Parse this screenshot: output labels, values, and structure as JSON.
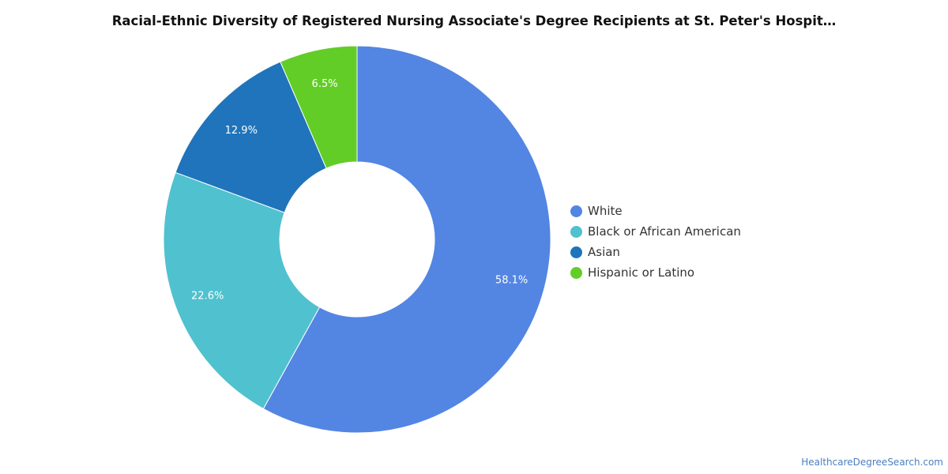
{
  "chart_data": {
    "type": "pie",
    "title": "Racial-Ethnic Diversity of Registered Nursing Associate's Degree Recipients at St. Peter's Hospit…",
    "categories": [
      "White",
      "Black or African American",
      "Asian",
      "Hispanic or Latino"
    ],
    "values": [
      58.1,
      22.6,
      12.9,
      6.5
    ],
    "value_labels": [
      "58.1%",
      "22.6%",
      "12.9%",
      "6.5%"
    ],
    "colors": [
      "#5385e3",
      "#50c1cf",
      "#1f74bb",
      "#62cd27"
    ],
    "legend_position": "right"
  },
  "source_link": "HealthcareDegreeSearch.com"
}
